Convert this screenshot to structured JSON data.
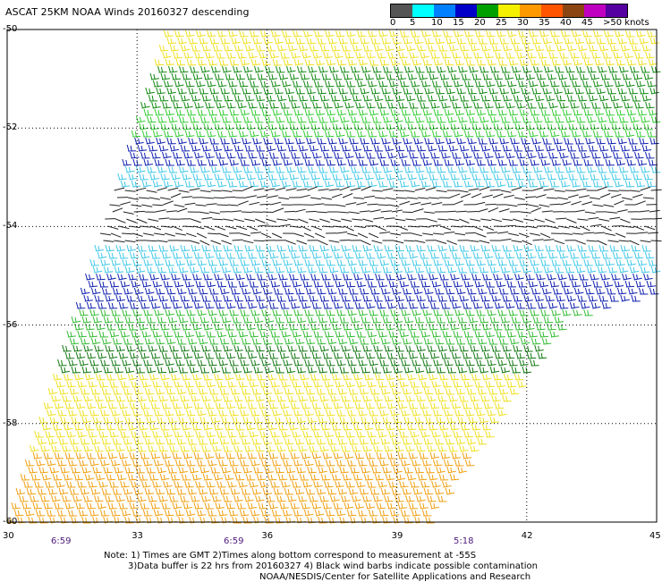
{
  "title": "ASCAT 25KM NOAA Winds 20160327 descending",
  "legend": {
    "labels": [
      "0",
      "5",
      "10",
      "15",
      "20",
      "25",
      "30",
      "35",
      "40",
      "45",
      ">50 knots"
    ],
    "colors": [
      "#555555",
      "#00ffff",
      "#0080ff",
      "#0000c8",
      "#00a000",
      "#f5f000",
      "#ff9900",
      "#ff5500",
      "#8b4513",
      "#c000c0",
      "#5500a0"
    ]
  },
  "axes": {
    "lat_labels": [
      "-50",
      "-52",
      "-54",
      "-56",
      "-58",
      "-60"
    ],
    "lon_labels": [
      "30",
      "33",
      "36",
      "39",
      "42",
      "45"
    ],
    "time_labels": [
      "6:59",
      "6:59",
      "5:18"
    ]
  },
  "notes": {
    "line1": "Note: 1) Times are GMT 2)Times along bottom correspond to measurement at -55S",
    "line2": "3)Data buffer is 22 hrs from 20160327 4) Black wind barbs indicate possible contamination",
    "line3": "NOAA/NESDIS/Center for Satellite Applications and Research"
  },
  "wind_bands": [
    {
      "lat_from": -50.0,
      "lat_to": -50.7,
      "color": "#f0e020"
    },
    {
      "lat_from": -50.7,
      "lat_to": -51.6,
      "color": "#118811"
    },
    {
      "lat_from": -51.6,
      "lat_to": -52.2,
      "color": "#33cc33"
    },
    {
      "lat_from": -52.2,
      "lat_to": -52.8,
      "color": "#1020b0"
    },
    {
      "lat_from": -52.8,
      "lat_to": -53.2,
      "color": "#40c8e8"
    },
    {
      "lat_from": -53.2,
      "lat_to": -54.3,
      "color": "#222222"
    },
    {
      "lat_from": -54.3,
      "lat_to": -55.0,
      "color": "#40c8e8"
    },
    {
      "lat_from": -55.0,
      "lat_to": -55.6,
      "color": "#1020b0"
    },
    {
      "lat_from": -55.6,
      "lat_to": -56.4,
      "color": "#33bb33"
    },
    {
      "lat_from": -56.4,
      "lat_to": -57.0,
      "color": "#117711"
    },
    {
      "lat_from": -57.0,
      "lat_to": -58.6,
      "color": "#f0e020"
    },
    {
      "lat_from": -58.6,
      "lat_to": -60.0,
      "color": "#f0a010"
    }
  ]
}
